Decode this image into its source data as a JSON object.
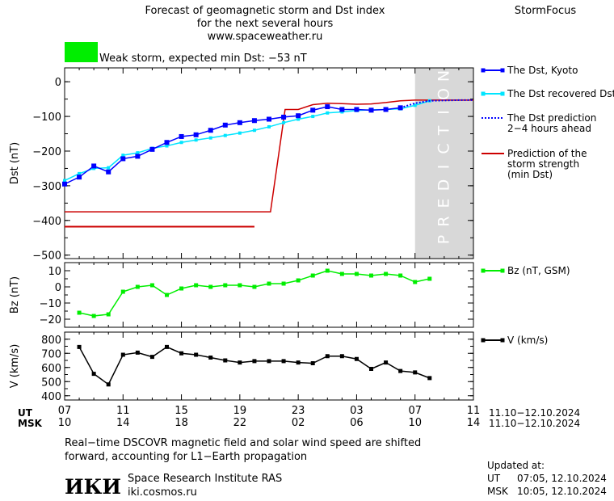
{
  "header": {
    "title_lines": [
      "Forecast of geomagnetic storm and Dst index",
      "for the next several hours",
      "www.spaceweather.ru"
    ],
    "brand": "StormFocus",
    "storm_text": "Weak storm, expected min Dst: −53 nT",
    "storm_color": "#00ee00"
  },
  "prediction_letters": [
    "P",
    "R",
    "E",
    "D",
    "I",
    "C",
    "T",
    "I",
    "O",
    "N"
  ],
  "colors": {
    "dst_kyoto": "#0000ff",
    "dst_recovered": "#00e5ff",
    "bz": "#00ee00",
    "v": "#000000",
    "strength": "#cc0000",
    "prediction_band": "#d8d8d8"
  },
  "chart_data": [
    {
      "type": "line",
      "ylabel": "Dst (nT)",
      "ylim": [
        -510,
        40
      ],
      "yticks": [
        0,
        -100,
        -200,
        -300,
        -400,
        -500
      ],
      "ytick_labels": [
        "0",
        "−100",
        "−200",
        "−300",
        "−400",
        "−500"
      ],
      "x_unit": "hours from 07 UT, 11.10.2024",
      "xlim": [
        0,
        28
      ],
      "prediction_start": 24,
      "legend": [
        {
          "key": "kyoto",
          "label_lines": [
            "The Dst, Kyoto"
          ]
        },
        {
          "key": "recovered",
          "label_lines": [
            "The Dst recovered Dst"
          ]
        },
        {
          "key": "prediction",
          "label_lines": [
            "The Dst prediction",
            "2−4 hours ahead"
          ]
        },
        {
          "key": "strength",
          "label_lines": [
            "Prediction of the",
            "storm strength",
            "(min Dst)"
          ]
        }
      ],
      "series": [
        {
          "key": "kyoto",
          "x": [
            0,
            1,
            2,
            3,
            4,
            5,
            6,
            7,
            8,
            9,
            10,
            11,
            12,
            13,
            14,
            15,
            16,
            17,
            18,
            19,
            20,
            21,
            22,
            23
          ],
          "y": [
            -295,
            -275,
            -243,
            -260,
            -222,
            -215,
            -195,
            -175,
            -158,
            -153,
            -140,
            -125,
            -118,
            -112,
            -108,
            -102,
            -98,
            -82,
            -72,
            -80,
            -80,
            -82,
            -80,
            -75
          ]
        },
        {
          "key": "recovered",
          "x": [
            0,
            1,
            2,
            3,
            4,
            5,
            6,
            7,
            8,
            9,
            10,
            11,
            12,
            13,
            14,
            15,
            16,
            17,
            18,
            19,
            20,
            21,
            22,
            23,
            24,
            25
          ],
          "y": [
            -285,
            -265,
            -250,
            -248,
            -212,
            -205,
            -192,
            -185,
            -175,
            -168,
            -162,
            -155,
            -148,
            -140,
            -130,
            -118,
            -108,
            -100,
            -90,
            -87,
            -83,
            -81,
            -80,
            -78,
            -68,
            -55
          ]
        },
        {
          "key": "prediction",
          "x": [
            23,
            24,
            25,
            26,
            27,
            28
          ],
          "y": [
            -75,
            -62,
            -55,
            -54,
            -53,
            -53
          ]
        },
        {
          "key": "strength",
          "x": [
            0,
            14.1,
            14.1,
            15.1,
            15.1,
            16,
            17,
            18,
            19,
            20,
            21,
            22,
            23,
            24,
            25,
            26,
            27,
            28
          ],
          "y": [
            -375,
            -375,
            -375,
            -80,
            -80,
            -80,
            -66,
            -62,
            -63,
            -65,
            -64,
            -60,
            -55,
            -53,
            -53,
            -53,
            -53,
            -53
          ]
        },
        {
          "key": "strength_min",
          "x": [
            0,
            13
          ],
          "y": [
            -418,
            -418
          ]
        }
      ]
    },
    {
      "type": "line",
      "ylabel": "Bz (nT)",
      "legend_label": "Bz (nT, GSM)",
      "ylim": [
        -25,
        15
      ],
      "yticks": [
        10,
        0,
        -10,
        -20
      ],
      "ytick_labels": [
        "10",
        "0",
        "−10",
        "−20"
      ],
      "x": [
        1,
        2,
        3,
        4,
        5,
        6,
        7,
        8,
        9,
        10,
        11,
        12,
        13,
        14,
        15,
        16,
        17,
        18,
        19,
        20,
        21,
        22,
        23,
        24,
        25
      ],
      "y": [
        -16,
        -18,
        -17,
        -3,
        0,
        1,
        -5,
        -1,
        1,
        0,
        1,
        1,
        0,
        2,
        2,
        4,
        7,
        10,
        8,
        8,
        7,
        8,
        7,
        3,
        5
      ]
    },
    {
      "type": "line",
      "ylabel": "V (km/s)",
      "legend_label": "V (km/s)",
      "ylim": [
        370,
        850
      ],
      "yticks": [
        800,
        700,
        600,
        500,
        400
      ],
      "ytick_labels": [
        "800",
        "700",
        "600",
        "500",
        "400"
      ],
      "x": [
        1,
        2,
        3,
        4,
        5,
        6,
        7,
        8,
        9,
        10,
        11,
        12,
        13,
        14,
        15,
        16,
        17,
        18,
        19,
        20,
        21,
        22,
        23,
        24,
        25
      ],
      "y": [
        745,
        555,
        480,
        690,
        705,
        675,
        745,
        700,
        690,
        670,
        650,
        635,
        645,
        645,
        645,
        635,
        630,
        680,
        680,
        660,
        590,
        635,
        575,
        565,
        525
      ]
    }
  ],
  "time_axis": {
    "ticks": [
      0,
      4,
      8,
      12,
      16,
      20,
      24,
      28
    ],
    "ut_label": "UT",
    "ut_ticks": [
      "07",
      "11",
      "15",
      "19",
      "23",
      "03",
      "07",
      "11"
    ],
    "ut_range": "11.10−12.10.2024",
    "msk_label": "MSK",
    "msk_ticks": [
      "10",
      "14",
      "18",
      "22",
      "02",
      "06",
      "10",
      "14"
    ],
    "msk_range": "11.10−12.10.2024"
  },
  "footer": {
    "note_lines": [
      "Real−time DSCOVR magnetic field and solar wind speed are shifted",
      "forward, accounting for L1−Earth propagation"
    ],
    "logo": "ИКИ",
    "institute": "Space Research Institute RAS",
    "site": "iki.cosmos.ru",
    "updated_label": "Updated at:",
    "updated_ut_label": "UT",
    "updated_ut": "07:05, 12.10.2024",
    "updated_msk_label": "MSK",
    "updated_msk": "10:05, 12.10.2024"
  }
}
